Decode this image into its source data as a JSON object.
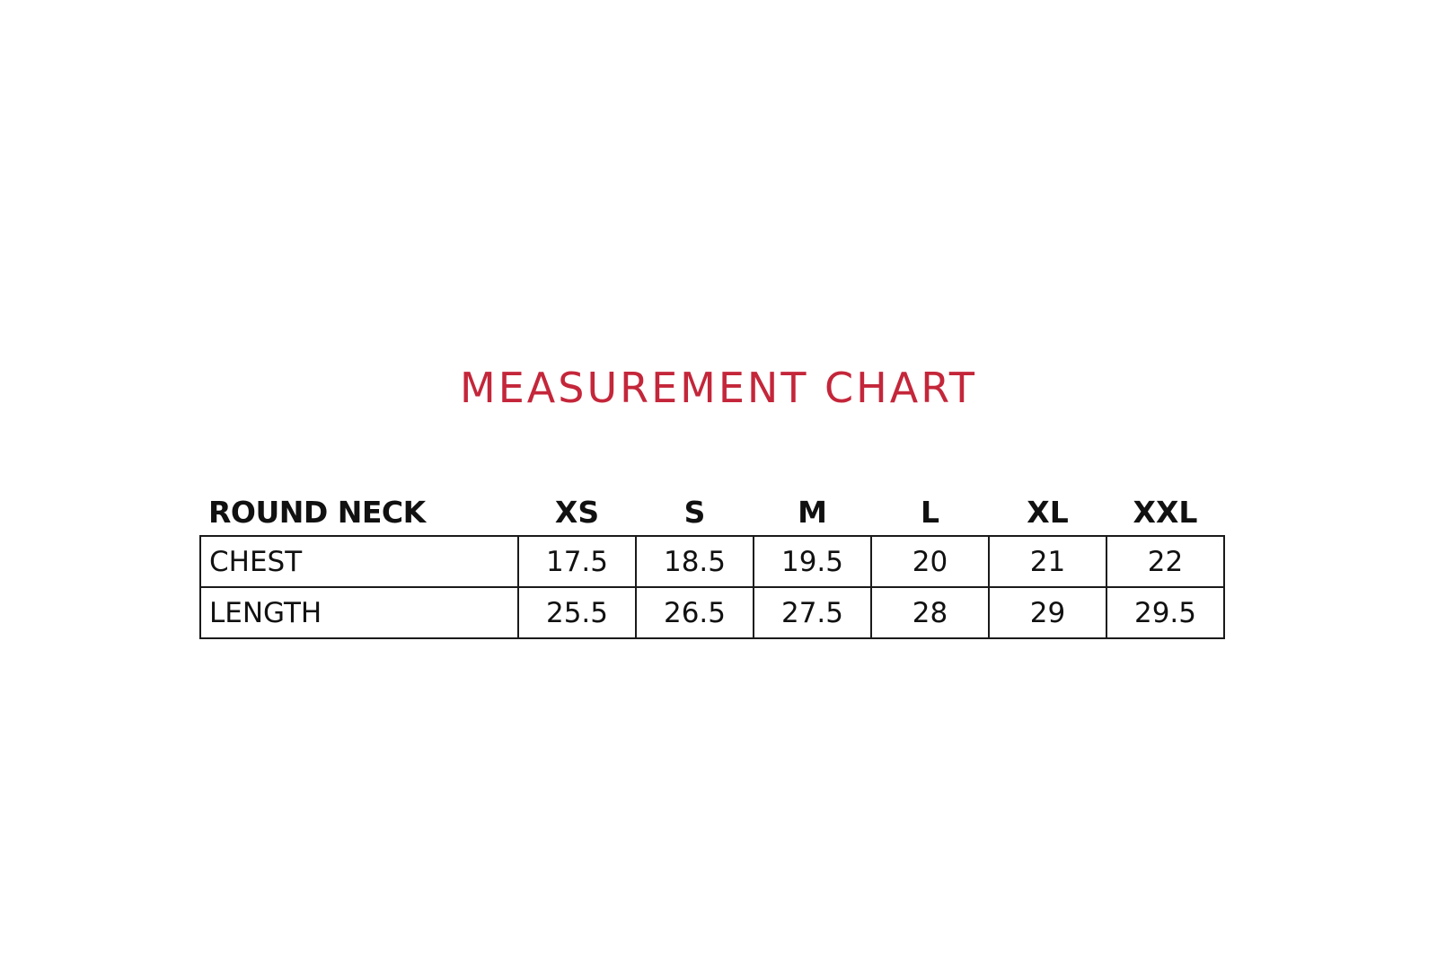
{
  "title": "MEASUREMENT CHART",
  "accent_color": "#c4263a",
  "table": {
    "header": {
      "label": "ROUND NECK",
      "sizes": [
        "XS",
        "S",
        "M",
        "L",
        "XL",
        "XXL"
      ]
    },
    "rows": [
      {
        "label": "CHEST",
        "values": [
          "17.5",
          "18.5",
          "19.5",
          "20",
          "21",
          "22"
        ]
      },
      {
        "label": "LENGTH",
        "values": [
          "25.5",
          "26.5",
          "27.5",
          "28",
          "29",
          "29.5"
        ]
      }
    ]
  }
}
